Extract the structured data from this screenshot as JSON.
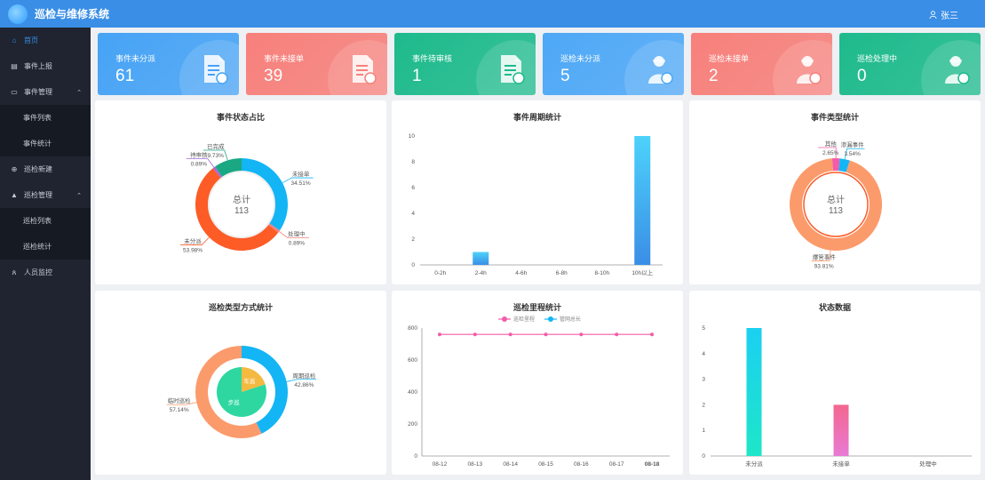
{
  "header": {
    "title": "巡检与维修系统",
    "user": "张三"
  },
  "sidebar": {
    "items": [
      {
        "label": "首页",
        "icon": "home-icon"
      },
      {
        "label": "事件上报",
        "icon": "report-icon"
      },
      {
        "label": "事件管理",
        "icon": "folder-icon"
      },
      {
        "label": "事件列表",
        "icon": ""
      },
      {
        "label": "事件统计",
        "icon": ""
      },
      {
        "label": "巡检新建",
        "icon": "plus-circle-icon"
      },
      {
        "label": "巡检管理",
        "icon": "warning-icon"
      },
      {
        "label": "巡检列表",
        "icon": ""
      },
      {
        "label": "巡检统计",
        "icon": ""
      },
      {
        "label": "人员监控",
        "icon": "people-icon"
      }
    ]
  },
  "cards": [
    {
      "label": "事件未分派",
      "value": "61",
      "color": "#46a3f5",
      "icon": "document-edit-icon"
    },
    {
      "label": "事件未接单",
      "value": "39",
      "color": "#f7807b",
      "icon": "document-alert-icon"
    },
    {
      "label": "事件待审核",
      "value": "1",
      "color": "#1dba8c",
      "icon": "document-clock-icon"
    },
    {
      "label": "巡检未分派",
      "value": "5",
      "color": "#4ea8f6",
      "icon": "worker-edit-icon"
    },
    {
      "label": "巡检未接单",
      "value": "2",
      "color": "#f7807b",
      "icon": "worker-alert-icon"
    },
    {
      "label": "巡检处理中",
      "value": "0",
      "color": "#1dba8c",
      "icon": "worker-clock-icon"
    }
  ],
  "panels": {
    "event_status": {
      "title": "事件状态占比",
      "center_label": "总计",
      "center_value": "113"
    },
    "event_cycle": {
      "title": "事件周期统计"
    },
    "event_type": {
      "title": "事件类型统计",
      "center_label": "总计",
      "center_value": "113"
    },
    "patrol_type": {
      "title": "巡检类型方式统计"
    },
    "patrol_mileage": {
      "title": "巡检里程统计"
    },
    "status_data": {
      "title": "状态数据"
    }
  },
  "chart_data": [
    {
      "type": "pie",
      "title": "事件状态占比",
      "slices": [
        {
          "label": "未接单",
          "percent": "34.51%",
          "value": 34.51,
          "color": "#13b5f5"
        },
        {
          "label": "处理中",
          "percent": "0.89%",
          "value": 0.89,
          "color": "#f7807b"
        },
        {
          "label": "未分派",
          "percent": "53.98%",
          "value": 53.98,
          "color": "#fd5c26"
        },
        {
          "label": "待审核",
          "percent": "0.89%",
          "value": 0.89,
          "color": "#a668d8"
        },
        {
          "label": "已完成",
          "percent": "9.73%",
          "value": 9.73,
          "color": "#1aa882"
        }
      ]
    },
    {
      "type": "bar",
      "title": "事件周期统计",
      "categories": [
        "0-2h",
        "2-4h",
        "4-6h",
        "6-8h",
        "8-10h",
        "10h以上"
      ],
      "values": [
        0,
        1,
        0,
        0,
        0,
        10
      ],
      "ylim": [
        0,
        10
      ],
      "yticks": [
        0,
        2,
        4,
        6,
        8,
        10
      ]
    },
    {
      "type": "pie",
      "title": "事件类型统计",
      "slices": [
        {
          "label": "其他",
          "percent": "2.65%",
          "value": 2.65,
          "color": "#f45ba8"
        },
        {
          "label": "渗漏事件",
          "percent": "3.54%",
          "value": 3.54,
          "color": "#13b5f5"
        },
        {
          "label": "爆管事件",
          "percent": "93.81%",
          "value": 93.81,
          "color": "#fb9b6b"
        }
      ]
    },
    {
      "type": "pie",
      "title": "巡检类型方式统计",
      "outer": [
        {
          "label": "周期巡检",
          "percent": "42.86%",
          "value": 42.86,
          "color": "#13b5f5"
        },
        {
          "label": "临时巡检",
          "percent": "57.14%",
          "value": 57.14,
          "color": "#fb9b6b"
        }
      ],
      "inner": [
        {
          "label": "车巡",
          "value": 20,
          "color": "#f4b940"
        },
        {
          "label": "步巡",
          "value": 80,
          "color": "#2ed7a0"
        }
      ]
    },
    {
      "type": "line",
      "title": "巡检里程统计",
      "legend": [
        "巡检里程",
        "管网总长"
      ],
      "x": [
        "08-12",
        "08-13",
        "08-14",
        "08-15",
        "08-16",
        "08-17",
        "08-18"
      ],
      "series": [
        {
          "name": "巡检里程",
          "values": [
            760,
            760,
            760,
            760,
            760,
            760,
            760
          ],
          "color": "#f45ba8"
        }
      ],
      "ylim": [
        0,
        800
      ],
      "yticks": [
        0,
        200,
        400,
        600,
        800
      ]
    },
    {
      "type": "bar",
      "title": "状态数据",
      "categories": [
        "未分派",
        "未接单",
        "处理中"
      ],
      "values": [
        5,
        2,
        0
      ],
      "ylim": [
        0,
        5
      ],
      "yticks": [
        0,
        1,
        2,
        3,
        4,
        5
      ]
    }
  ]
}
